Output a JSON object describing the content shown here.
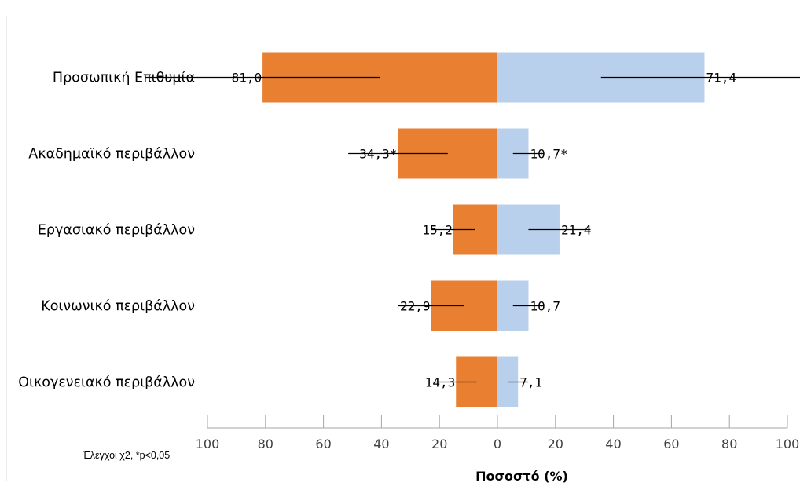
{
  "chart_data": {
    "type": "bar",
    "orientation": "horizontal-diverging",
    "categories": [
      "Προσωπική Επιθυμία",
      "Ακαδημαϊκό περιβάλλον",
      "Εργασιακό περιβάλλον",
      "Κοινωνικό περιβάλλον",
      "Οικογενειακό περιβάλλον"
    ],
    "series": [
      {
        "color": "#E97F30",
        "direction": "left",
        "values": [
          81.0,
          34.3,
          15.2,
          22.9,
          14.3
        ],
        "labels": [
          "81,0",
          "34,3*",
          "15,2",
          "22,9",
          "14,3"
        ],
        "error_half_width": [
          40.5,
          17.15,
          7.6,
          11.45,
          7.15
        ]
      },
      {
        "color": "#B9D0EC",
        "direction": "right",
        "values": [
          71.4,
          10.7,
          21.4,
          10.7,
          7.1
        ],
        "labels": [
          "71,4",
          "10,7*",
          "21,4",
          "10,7",
          "7,1"
        ],
        "error_half_width": [
          35.7,
          5.35,
          10.7,
          5.35,
          3.55
        ]
      }
    ],
    "xlim": [
      -100,
      100
    ],
    "xticks": [
      -100,
      -80,
      -60,
      -40,
      -20,
      0,
      20,
      40,
      60,
      80,
      100
    ],
    "xtick_labels": [
      "100",
      "80",
      "60",
      "40",
      "20",
      "0",
      "20",
      "40",
      "60",
      "80",
      "100"
    ],
    "xlabel": "Ποσοστό (%)",
    "footnote": "Έλεγχοι χ2, *p<0,05",
    "legend": "none",
    "grid": false
  }
}
